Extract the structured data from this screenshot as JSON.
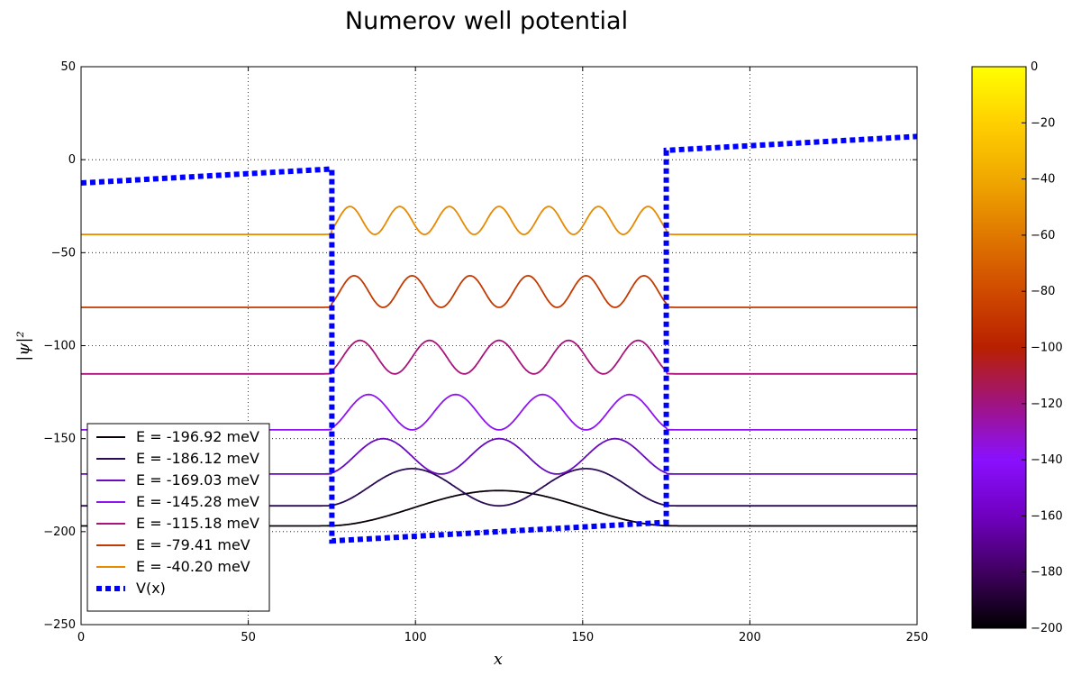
{
  "chart_data": {
    "type": "line",
    "title": "Numerov well potential",
    "xlabel": "x",
    "ylabel": "|ψ|²",
    "xlim": [
      0,
      250
    ],
    "ylim": [
      -250,
      50
    ],
    "xticks": [
      "0",
      "50",
      "100",
      "150",
      "200",
      "250"
    ],
    "yticks": [
      "50",
      "0",
      "−50",
      "−100",
      "−150",
      "−200",
      "−250"
    ],
    "grid": true,
    "legend_position": "lower-left",
    "well": {
      "left": 75,
      "right": 175
    },
    "series": [
      {
        "name": "E = -196.92 meV",
        "energy": -196.92,
        "nodes": 0,
        "amplitude": 19,
        "color": "#0a0009"
      },
      {
        "name": "E = -186.12 meV",
        "energy": -186.12,
        "nodes": 1,
        "amplitude": 20,
        "color": "#2b0a56"
      },
      {
        "name": "E = -169.03 meV",
        "energy": -169.03,
        "nodes": 2,
        "amplitude": 19,
        "color": "#6a0bc0"
      },
      {
        "name": "E = -145.28 meV",
        "energy": -145.28,
        "nodes": 3,
        "amplitude": 19,
        "color": "#8f14f2"
      },
      {
        "name": "E = -115.18 meV",
        "energy": -115.18,
        "nodes": 4,
        "amplitude": 18,
        "color": "#a8147a"
      },
      {
        "name": "E = -79.41 meV",
        "energy": -79.41,
        "nodes": 5,
        "amplitude": 17,
        "color": "#c23a00"
      },
      {
        "name": "E = -40.20 meV",
        "energy": -40.2,
        "nodes": 6,
        "amplitude": 15,
        "color": "#e68a00"
      }
    ],
    "potential": {
      "name": "V(x)",
      "color": "#0000ff",
      "x": [
        0,
        75,
        75,
        175,
        175,
        250
      ],
      "y": [
        -12.5,
        -5,
        -205,
        -195,
        5,
        12.5
      ]
    },
    "colorbar": {
      "range": [
        -200,
        0
      ],
      "ticks": [
        "0",
        "−20",
        "−40",
        "−60",
        "−80",
        "−100",
        "−120",
        "−140",
        "−160",
        "−180",
        "−200"
      ],
      "colormap": [
        "#000000",
        "#400060",
        "#7000c0",
        "#8a10ff",
        "#a01480",
        "#b82000",
        "#d04a00",
        "#e07800",
        "#f0a800",
        "#ffd000",
        "#ffff00"
      ]
    }
  }
}
